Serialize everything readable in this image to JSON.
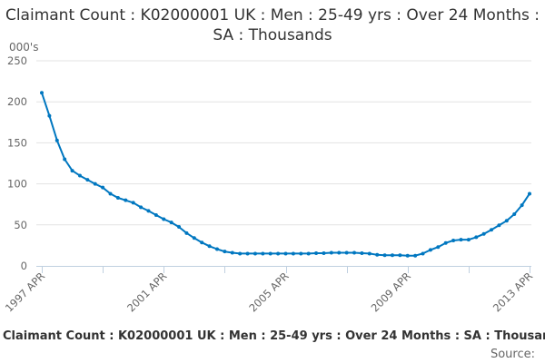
{
  "chart_data": {
    "type": "line",
    "title": "Claimant Count : K02000001 UK : Men : 25-49 yrs : Over 24 Months : SA : Thousands",
    "ylabel": "000's",
    "ylim": [
      0,
      250
    ],
    "yticks": [
      "0",
      "50",
      "100",
      "150",
      "200",
      "250"
    ],
    "xtick_labels": [
      "1997 APR",
      "2001 APR",
      "2005 APR",
      "2009 APR",
      "2013 APR"
    ],
    "grid": true,
    "legend_position": "bottom",
    "color": "#0077c0",
    "x": [
      "1997 APR",
      "1997 JUL",
      "1997 OCT",
      "1998 JAN",
      "1998 APR",
      "1998 JUL",
      "1998 OCT",
      "1999 JAN",
      "1999 APR",
      "1999 JUL",
      "1999 OCT",
      "2000 JAN",
      "2000 APR",
      "2000 JUL",
      "2000 OCT",
      "2001 JAN",
      "2001 APR",
      "2001 JUL",
      "2001 OCT",
      "2002 JAN",
      "2002 APR",
      "2002 JUL",
      "2002 OCT",
      "2003 JAN",
      "2003 APR",
      "2003 JUL",
      "2003 OCT",
      "2004 JAN",
      "2004 APR",
      "2004 JUL",
      "2004 OCT",
      "2005 JAN",
      "2005 APR",
      "2005 JUL",
      "2005 OCT",
      "2006 JAN",
      "2006 APR",
      "2006 JUL",
      "2006 OCT",
      "2007 JAN",
      "2007 APR",
      "2007 JUL",
      "2007 OCT",
      "2008 JAN",
      "2008 APR",
      "2008 JUL",
      "2008 OCT",
      "2009 JAN",
      "2009 APR",
      "2009 JUL",
      "2009 OCT",
      "2010 JAN",
      "2010 APR",
      "2010 JUL",
      "2010 OCT",
      "2011 JAN",
      "2011 APR",
      "2011 JUL",
      "2011 OCT",
      "2012 JAN",
      "2012 APR",
      "2012 JUL",
      "2012 OCT",
      "2013 JAN",
      "2013 APR"
    ],
    "series": [
      {
        "name": "Claimant Count : K02000001 UK : Men : 25-49 yrs : Over 24 Months : SA : Thousands",
        "values": [
          211,
          183,
          153,
          130,
          116,
          110,
          105,
          100,
          95.5,
          88,
          83,
          80,
          77,
          71.5,
          67,
          62,
          57,
          53,
          47.5,
          40,
          34,
          28.5,
          24,
          20.5,
          17.5,
          16,
          15,
          15,
          15,
          15,
          15,
          15,
          15,
          15,
          15,
          15,
          15.5,
          15.5,
          16,
          16,
          16,
          16,
          15.5,
          15,
          13.5,
          13,
          13,
          13,
          12.5,
          12.5,
          15,
          19.5,
          23,
          28,
          31,
          32,
          32,
          35,
          39,
          44,
          49.5,
          55,
          63,
          74,
          88
        ]
      }
    ]
  },
  "source_label": "Source:"
}
